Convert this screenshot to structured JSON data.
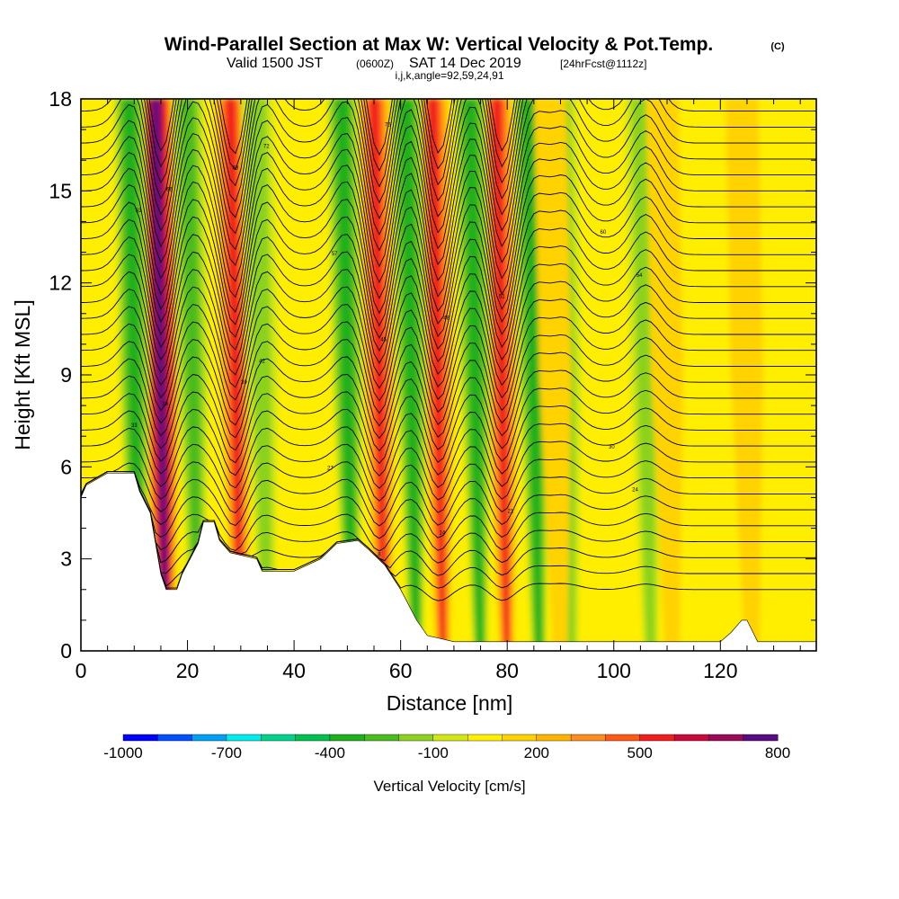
{
  "chart_data": {
    "type": "heatmap",
    "title": "Wind-Parallel Section at Max W: Vertical Velocity & Pot.Temp.",
    "title_mark": "(C)",
    "subtitle": {
      "valid_main": "Valid 1500 JST",
      "valid_utc": "(0600Z)",
      "valid_date": "SAT 14 Dec 2019",
      "forecast": "[24hrFcst@1112z]"
    },
    "ijk_line": "i,j,k,angle=92,59,24,91",
    "xlabel": "Distance [nm]",
    "ylabel": "Height [Kft MSL]",
    "xlim": [
      0,
      138
    ],
    "ylim": [
      0,
      18
    ],
    "x_ticks": [
      0,
      20,
      40,
      60,
      80,
      100,
      120
    ],
    "y_ticks": [
      0,
      3,
      6,
      9,
      12,
      15,
      18
    ],
    "colorbar": {
      "label": "Vertical Velocity [cm/s]",
      "levels": [
        -1000,
        -900,
        -800,
        -700,
        -600,
        -500,
        -400,
        -300,
        -200,
        -100,
        0,
        100,
        200,
        300,
        400,
        500,
        600,
        700,
        800
      ],
      "labeled_levels": [
        -1000,
        -700,
        -400,
        -100,
        200,
        500,
        800
      ],
      "colors": [
        "#0000ff",
        "#0050ff",
        "#00a0f5",
        "#00ecec",
        "#00d48c",
        "#00c050",
        "#1eb01e",
        "#4bbb1e",
        "#8cd21e",
        "#d2e614",
        "#ffee00",
        "#ffd200",
        "#ffb400",
        "#ff8c1e",
        "#ff5a14",
        "#f01e1e",
        "#c80a3c",
        "#9b0a5a",
        "#5a0a82"
      ]
    },
    "vertical_velocity_bands": [
      {
        "x": 15,
        "peak_cm_s": 800
      },
      {
        "x": 29,
        "peak_cm_s": 500
      },
      {
        "x": 56,
        "peak_cm_s": 500
      },
      {
        "x": 67,
        "peak_cm_s": 500
      },
      {
        "x": 79,
        "peak_cm_s": 500
      },
      {
        "x": 10,
        "peak_cm_s": -400
      },
      {
        "x": 21,
        "peak_cm_s": -300
      },
      {
        "x": 34,
        "peak_cm_s": -200
      },
      {
        "x": 50,
        "peak_cm_s": -400
      },
      {
        "x": 62,
        "peak_cm_s": -400
      },
      {
        "x": 74,
        "peak_cm_s": -400
      },
      {
        "x": 85,
        "peak_cm_s": -400
      },
      {
        "x": 91,
        "peak_cm_s": -200
      },
      {
        "x": 106,
        "peak_cm_s": -200
      },
      {
        "x": 89,
        "peak_cm_s": 100
      },
      {
        "x": 110,
        "peak_cm_s": 100
      },
      {
        "x": 125,
        "peak_cm_s": 100
      }
    ],
    "terrain_kft": {
      "x": [
        0,
        1,
        5,
        10,
        11,
        13,
        14,
        15,
        16,
        18,
        19,
        22,
        23,
        25,
        26,
        28,
        33,
        34,
        40,
        45,
        48,
        52,
        54,
        57,
        60,
        63,
        65,
        70,
        120,
        122,
        124,
        125,
        127,
        138
      ],
      "y": [
        5.0,
        5.4,
        5.8,
        5.8,
        5.2,
        4.5,
        3.5,
        2.5,
        2.0,
        2.0,
        2.5,
        3.5,
        4.2,
        4.2,
        3.6,
        3.2,
        3.0,
        2.6,
        2.6,
        3.0,
        3.5,
        3.6,
        3.3,
        2.8,
        2.0,
        1.0,
        0.5,
        0.3,
        0.3,
        0.6,
        1.0,
        1.0,
        0.3,
        0.3
      ]
    },
    "potential_temperature_contour_labels": [
      "18",
      "12",
      "6",
      "8",
      "14",
      "21",
      "24",
      "27",
      "30",
      "33",
      "36",
      "39",
      "42",
      "45",
      "48",
      "51",
      "54",
      "57",
      "60",
      "63",
      "66",
      "69",
      "72",
      "75"
    ]
  }
}
